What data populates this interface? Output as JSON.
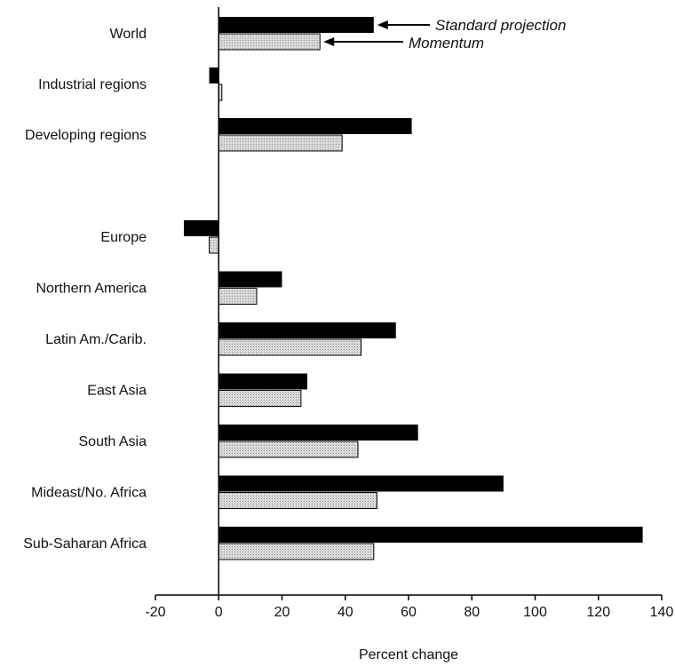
{
  "chart_data": {
    "type": "bar",
    "orientation": "horizontal",
    "categories": [
      "World",
      "Industrial regions",
      "Developing regions",
      "Europe",
      "Northern America",
      "Latin Am./Carib.",
      "East Asia",
      "South Asia",
      "Mideast/No. Africa",
      "Sub-Saharan Africa"
    ],
    "series": [
      {
        "name": "Standard projection",
        "color": "#000000",
        "values": [
          49,
          -3,
          61,
          -11,
          20,
          56,
          28,
          63,
          90,
          134
        ]
      },
      {
        "name": "Momentum",
        "color": "#d9d9d9",
        "values": [
          32,
          1,
          39,
          -3,
          12,
          45,
          26,
          44,
          50,
          49
        ]
      }
    ],
    "xlabel": "Percent change",
    "xlim": [
      -20,
      140
    ],
    "xticks": [
      "-20",
      "0",
      "20",
      "40",
      "60",
      "80",
      "100",
      "120",
      "140"
    ],
    "grid": false,
    "legend": "annotated arrows near top"
  }
}
